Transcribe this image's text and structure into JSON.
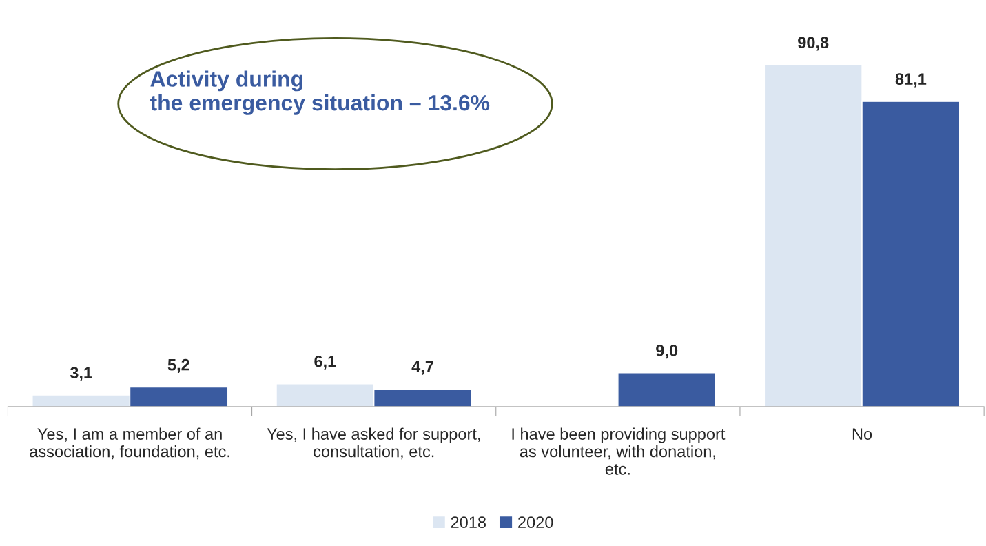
{
  "chart_data": {
    "type": "bar",
    "categories": [
      "Yes, I am a member of an\nassociation, foundation, etc.",
      "Yes, I have asked for support,\nconsultation, etc.",
      "I have been providing support\nas volunteer, with donation,\netc.",
      "No"
    ],
    "series": [
      {
        "name": "2018",
        "color": "#dce6f2",
        "values": [
          3.1,
          6.1,
          null,
          90.8
        ],
        "value_labels": [
          "3,1",
          "6,1",
          null,
          "90,8"
        ]
      },
      {
        "name": "2020",
        "color": "#3a5ba0",
        "values": [
          5.2,
          4.7,
          9.0,
          81.1
        ],
        "value_labels": [
          "5,2",
          "4,7",
          "9,0",
          "81,1"
        ]
      }
    ],
    "annotations": [
      "Activity during\nthe emergency situation – 13.6%"
    ],
    "legend": "bottom",
    "grid": false
  }
}
